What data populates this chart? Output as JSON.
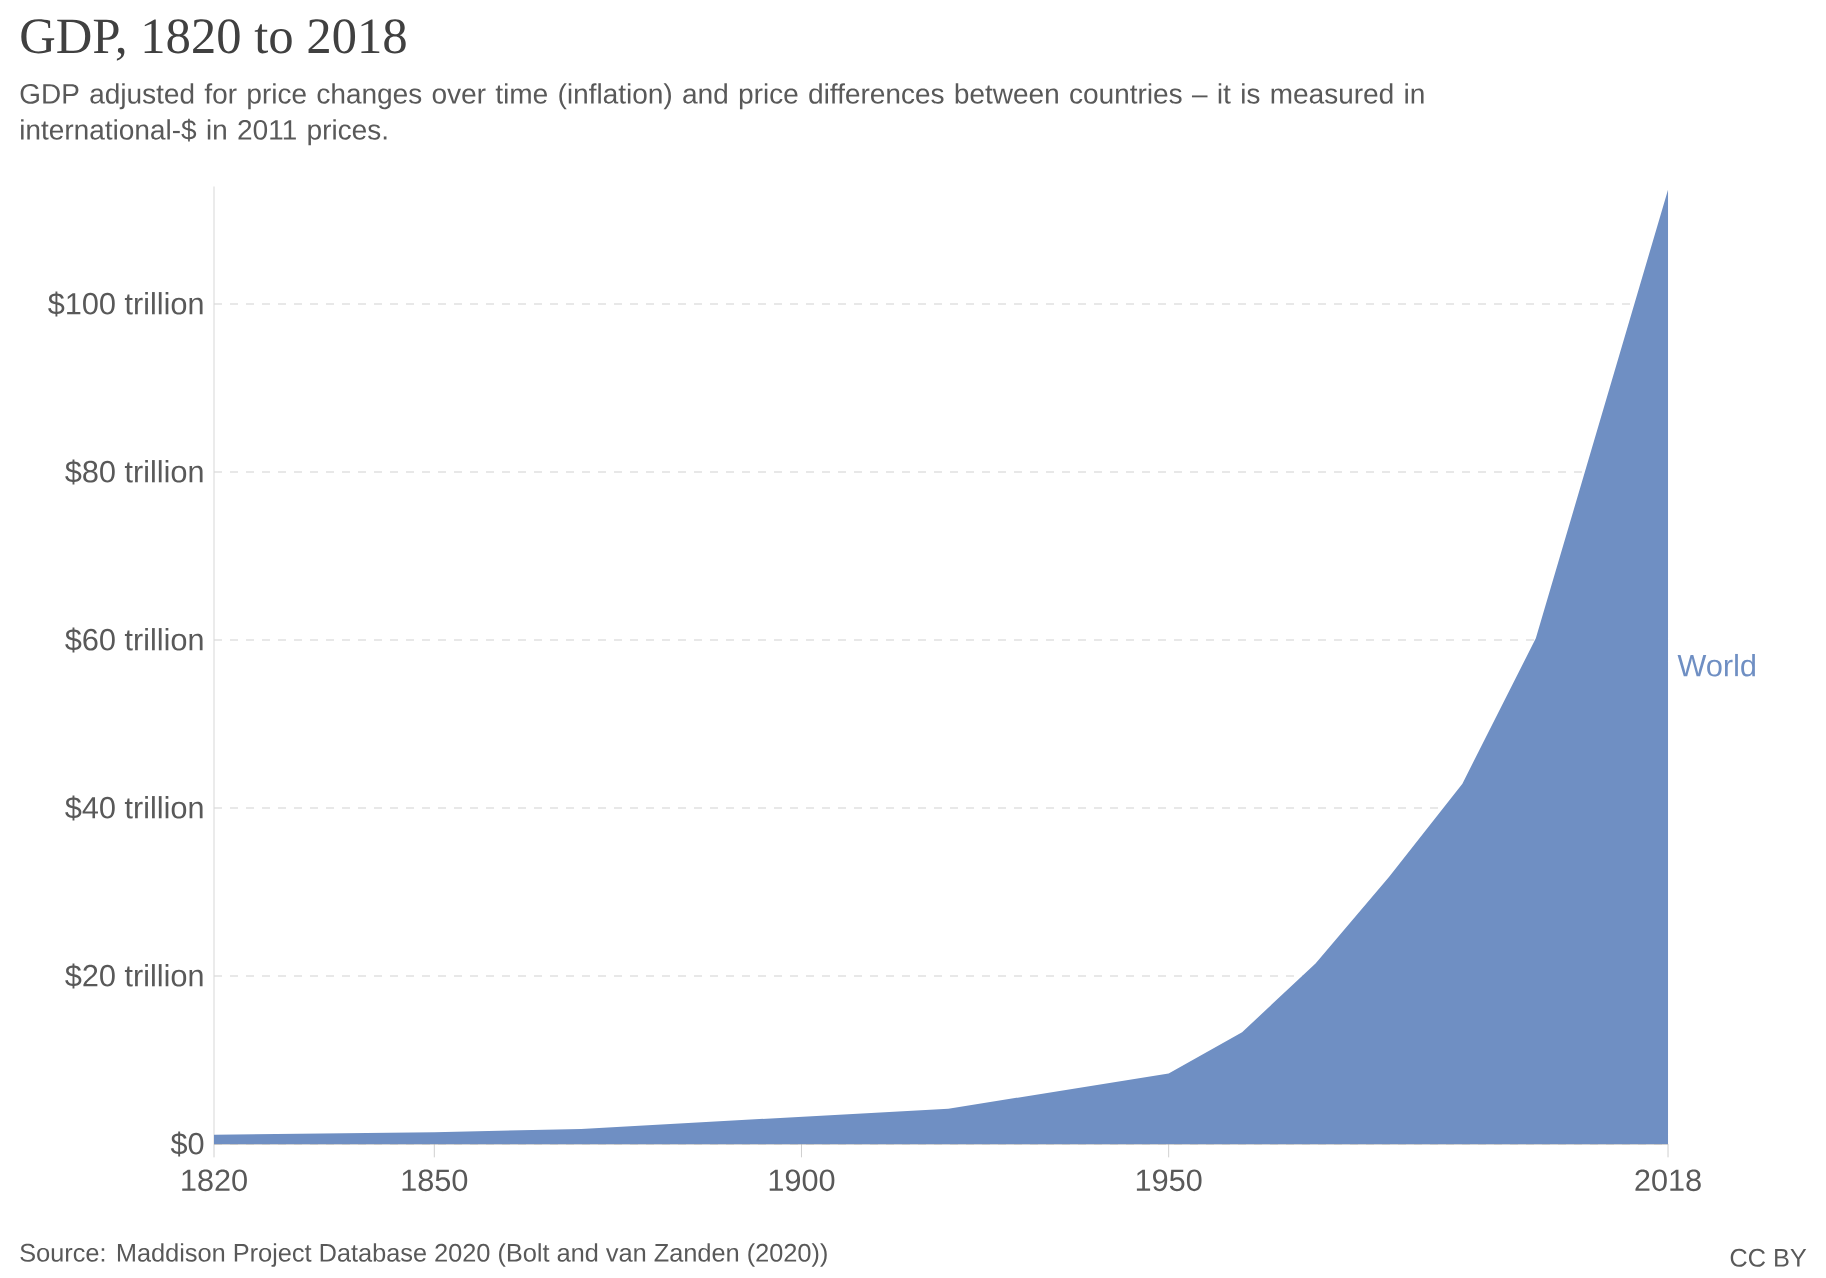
{
  "chart_data": {
    "type": "area",
    "title": "GDP, 1820 to 2018",
    "subtitle": "GDP adjusted for price changes over time (inflation) and price differences between countries – it is measured in international-$ in 2011 prices.",
    "annotations": [
      "Source: Maddison Project Database 2020 (Bolt and van Zanden (2020))",
      "CC BY"
    ],
    "x": [
      1820,
      1850,
      1870,
      1920,
      1950,
      1960,
      1970,
      1980,
      1990,
      2000,
      2018
    ],
    "series": [
      {
        "name": "World",
        "color": "#6f8fc3",
        "values": [
          1.1,
          1.4,
          1.8,
          4.2,
          8.4,
          13.3,
          21.5,
          31.8,
          42.9,
          60.2,
          113.6
        ]
      }
    ],
    "xlim": [
      1820,
      2018
    ],
    "xticks": [
      1820,
      1850,
      1900,
      1950,
      2018
    ],
    "ylim": [
      0,
      114
    ],
    "yticks": [
      {
        "value": 0,
        "label": "$0"
      },
      {
        "value": 20,
        "label": "$20 trillion"
      },
      {
        "value": 40,
        "label": "$40 trillion"
      },
      {
        "value": 60,
        "label": "$60 trillion"
      },
      {
        "value": 80,
        "label": "$80 trillion"
      },
      {
        "value": 100,
        "label": "$100 trillion"
      }
    ],
    "grid": "y"
  }
}
